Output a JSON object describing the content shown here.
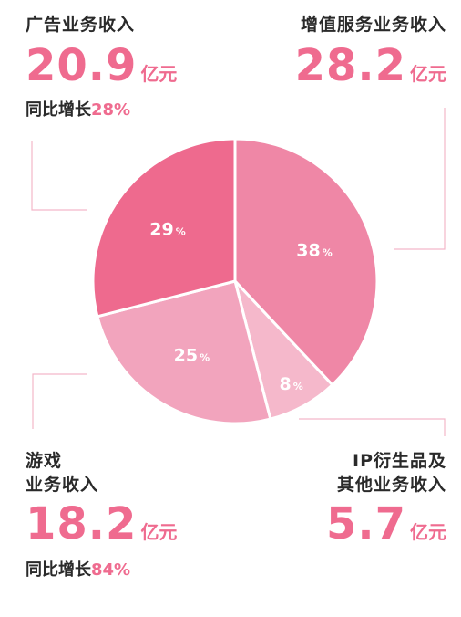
{
  "chart_data": {
    "type": "pie",
    "title": "",
    "slices": [
      {
        "label": "增值服务业务收入",
        "value": 38,
        "display": "38",
        "unit": "%",
        "color": "#ef87a6"
      },
      {
        "label": "IP衍生品及其他业务收入",
        "value": 8,
        "display": "8",
        "unit": "%",
        "color": "#f5b8cb"
      },
      {
        "label": "游戏业务收入",
        "value": 25,
        "display": "25",
        "unit": "%",
        "color": "#f2a4bd"
      },
      {
        "label": "广告业务收入",
        "value": 29,
        "display": "29",
        "unit": "%",
        "color": "#ee6a8e"
      }
    ]
  },
  "blocks": {
    "ads": {
      "title": "广告业务收入",
      "amount": "20.9",
      "unit": "亿元",
      "growth_label": "同比增长",
      "growth_value": "28%"
    },
    "vas": {
      "title": "增值服务业务收入",
      "amount": "28.2",
      "unit": "亿元"
    },
    "games": {
      "title_line1": "游戏",
      "title_line2": "业务收入",
      "amount": "18.2",
      "unit": "亿元",
      "growth_label": "同比增长",
      "growth_value": "84%"
    },
    "ip": {
      "title_line1": "IP衍生品及",
      "title_line2": "其他业务收入",
      "amount": "5.7",
      "unit": "亿元"
    }
  },
  "colors": {
    "accent": "#ef6b8f",
    "leader_line": "#f3b7c9"
  }
}
